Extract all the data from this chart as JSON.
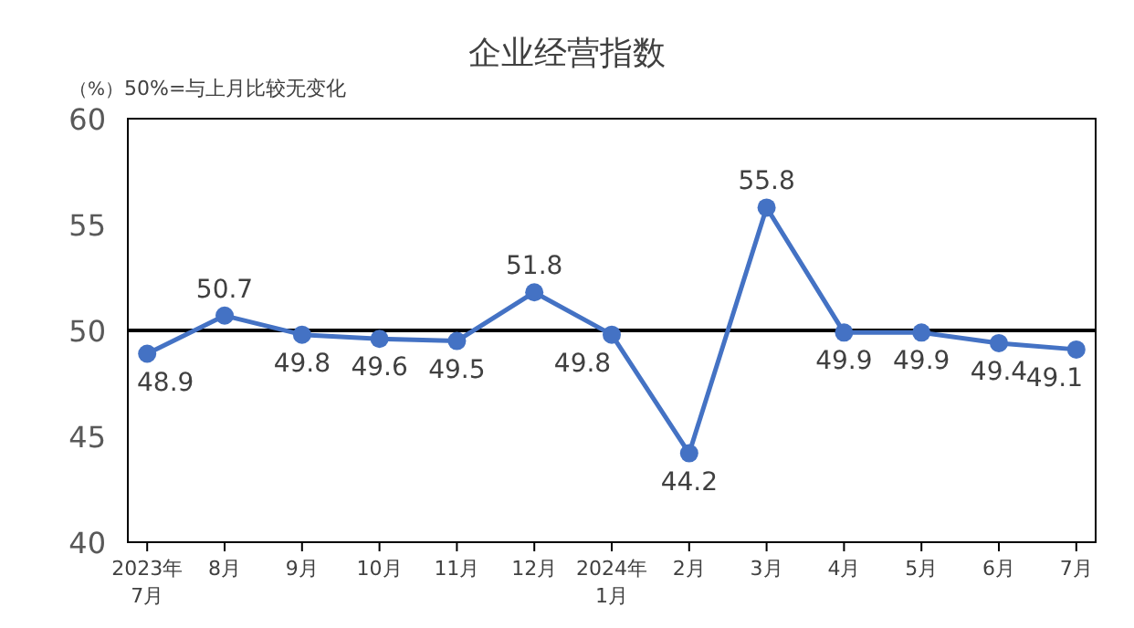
{
  "chart_data": {
    "type": "line",
    "title": "企业经营指数",
    "ylabel": "（%）",
    "annotations": [
      "50%=与上月比较无变化"
    ],
    "categories": [
      "2023年\n7月",
      "8月",
      "9月",
      "10月",
      "11月",
      "12月",
      "2024年\n1月",
      "2月",
      "3月",
      "4月",
      "5月",
      "6月",
      "7月"
    ],
    "series": [
      {
        "color": "#4472c4",
        "values": [
          48.9,
          50.7,
          49.8,
          49.6,
          49.5,
          51.8,
          49.8,
          44.2,
          55.8,
          49.9,
          49.9,
          49.4,
          49.1
        ]
      }
    ],
    "ylim": [
      40,
      60
    ],
    "yticks": [
      40,
      45,
      50,
      55,
      60
    ],
    "grid": false,
    "marker": "circle",
    "line_style": "solid",
    "data_labels": true,
    "ref_lines": [
      {
        "axis": "y",
        "value": 50,
        "color": "#000000"
      }
    ]
  }
}
